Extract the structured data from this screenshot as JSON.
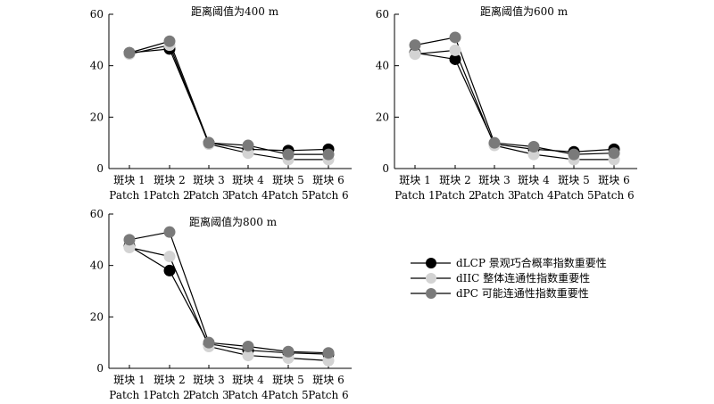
{
  "chart_data": [
    {
      "type": "line",
      "title": "距离阈值为400 m",
      "categories": [
        "斑块 1",
        "斑块 2",
        "斑块 3",
        "斑块 4",
        "斑块 5",
        "斑块 6"
      ],
      "categories_en": [
        "Patch 1",
        "Patch 2",
        "Patch 3",
        "Patch 4",
        "Patch 5",
        "Patch 6"
      ],
      "ylim": [
        0,
        60
      ],
      "yticks": [
        "0",
        "20",
        "40",
        "60"
      ],
      "series": [
        {
          "name": "dLCP 景观巧合概率指数重要性",
          "color": "#000000",
          "values": [
            45,
            46.5,
            10,
            7.5,
            7,
            7.5
          ]
        },
        {
          "name": "dIIC 整体连通性指数重要性",
          "color": "#d3d3d3",
          "values": [
            44.5,
            48,
            9.5,
            6,
            3.5,
            3.5
          ]
        },
        {
          "name": "dPC 可能连通性指数重要性",
          "color": "#7a7a7a",
          "values": [
            45,
            49.5,
            10,
            9,
            5.5,
            5.5
          ]
        }
      ]
    },
    {
      "type": "line",
      "title": "距离阈值为600 m",
      "categories": [
        "斑块 1",
        "斑块 2",
        "斑块 3",
        "斑块 4",
        "斑块 5",
        "斑块 6"
      ],
      "categories_en": [
        "Patch 1",
        "Patch 2",
        "Patch 3",
        "Patch 4",
        "Patch 5",
        "Patch 6"
      ],
      "ylim": [
        0,
        60
      ],
      "yticks": [
        "0",
        "20",
        "40",
        "60"
      ],
      "series": [
        {
          "name": "dLCP 景观巧合概率指数重要性",
          "color": "#000000",
          "values": [
            45,
            42.5,
            9.5,
            7.5,
            6.5,
            7.5
          ]
        },
        {
          "name": "dIIC 整体连通性指数重要性",
          "color": "#d3d3d3",
          "values": [
            44.5,
            46,
            9,
            5.5,
            3.5,
            3.5
          ]
        },
        {
          "name": "dPC 可能连通性指数重要性",
          "color": "#7a7a7a",
          "values": [
            48,
            51,
            10,
            8.5,
            5.5,
            6
          ]
        }
      ]
    },
    {
      "type": "line",
      "title": "距离阈值为800 m",
      "categories": [
        "斑块 1",
        "斑块 2",
        "斑块 3",
        "斑块 4",
        "斑块 5",
        "斑块 6"
      ],
      "categories_en": [
        "Patch 1",
        "Patch 2",
        "Patch 3",
        "Patch 4",
        "Patch 5",
        "Patch 6"
      ],
      "ylim": [
        0,
        60
      ],
      "yticks": [
        "0",
        "20",
        "40",
        "60"
      ],
      "series": [
        {
          "name": "dLCP 景观巧合概率指数重要性",
          "color": "#000000",
          "values": [
            47.5,
            38,
            9.5,
            7,
            6,
            5.5
          ]
        },
        {
          "name": "dIIC 整体连通性指数重要性",
          "color": "#d3d3d3",
          "values": [
            47,
            43.5,
            8.5,
            5,
            4,
            3
          ]
        },
        {
          "name": "dPC 可能连通性指数重要性",
          "color": "#7a7a7a",
          "values": [
            50,
            53,
            10,
            8.5,
            6.5,
            6
          ]
        }
      ]
    }
  ],
  "legend": {
    "items": [
      {
        "label": "dLCP 景观巧合概率指数重要性",
        "color": "#000000"
      },
      {
        "label": "dIIC 整体连通性指数重要性",
        "color": "#d3d3d3"
      },
      {
        "label": "dPC 可能连通性指数重要性",
        "color": "#7a7a7a"
      }
    ]
  }
}
